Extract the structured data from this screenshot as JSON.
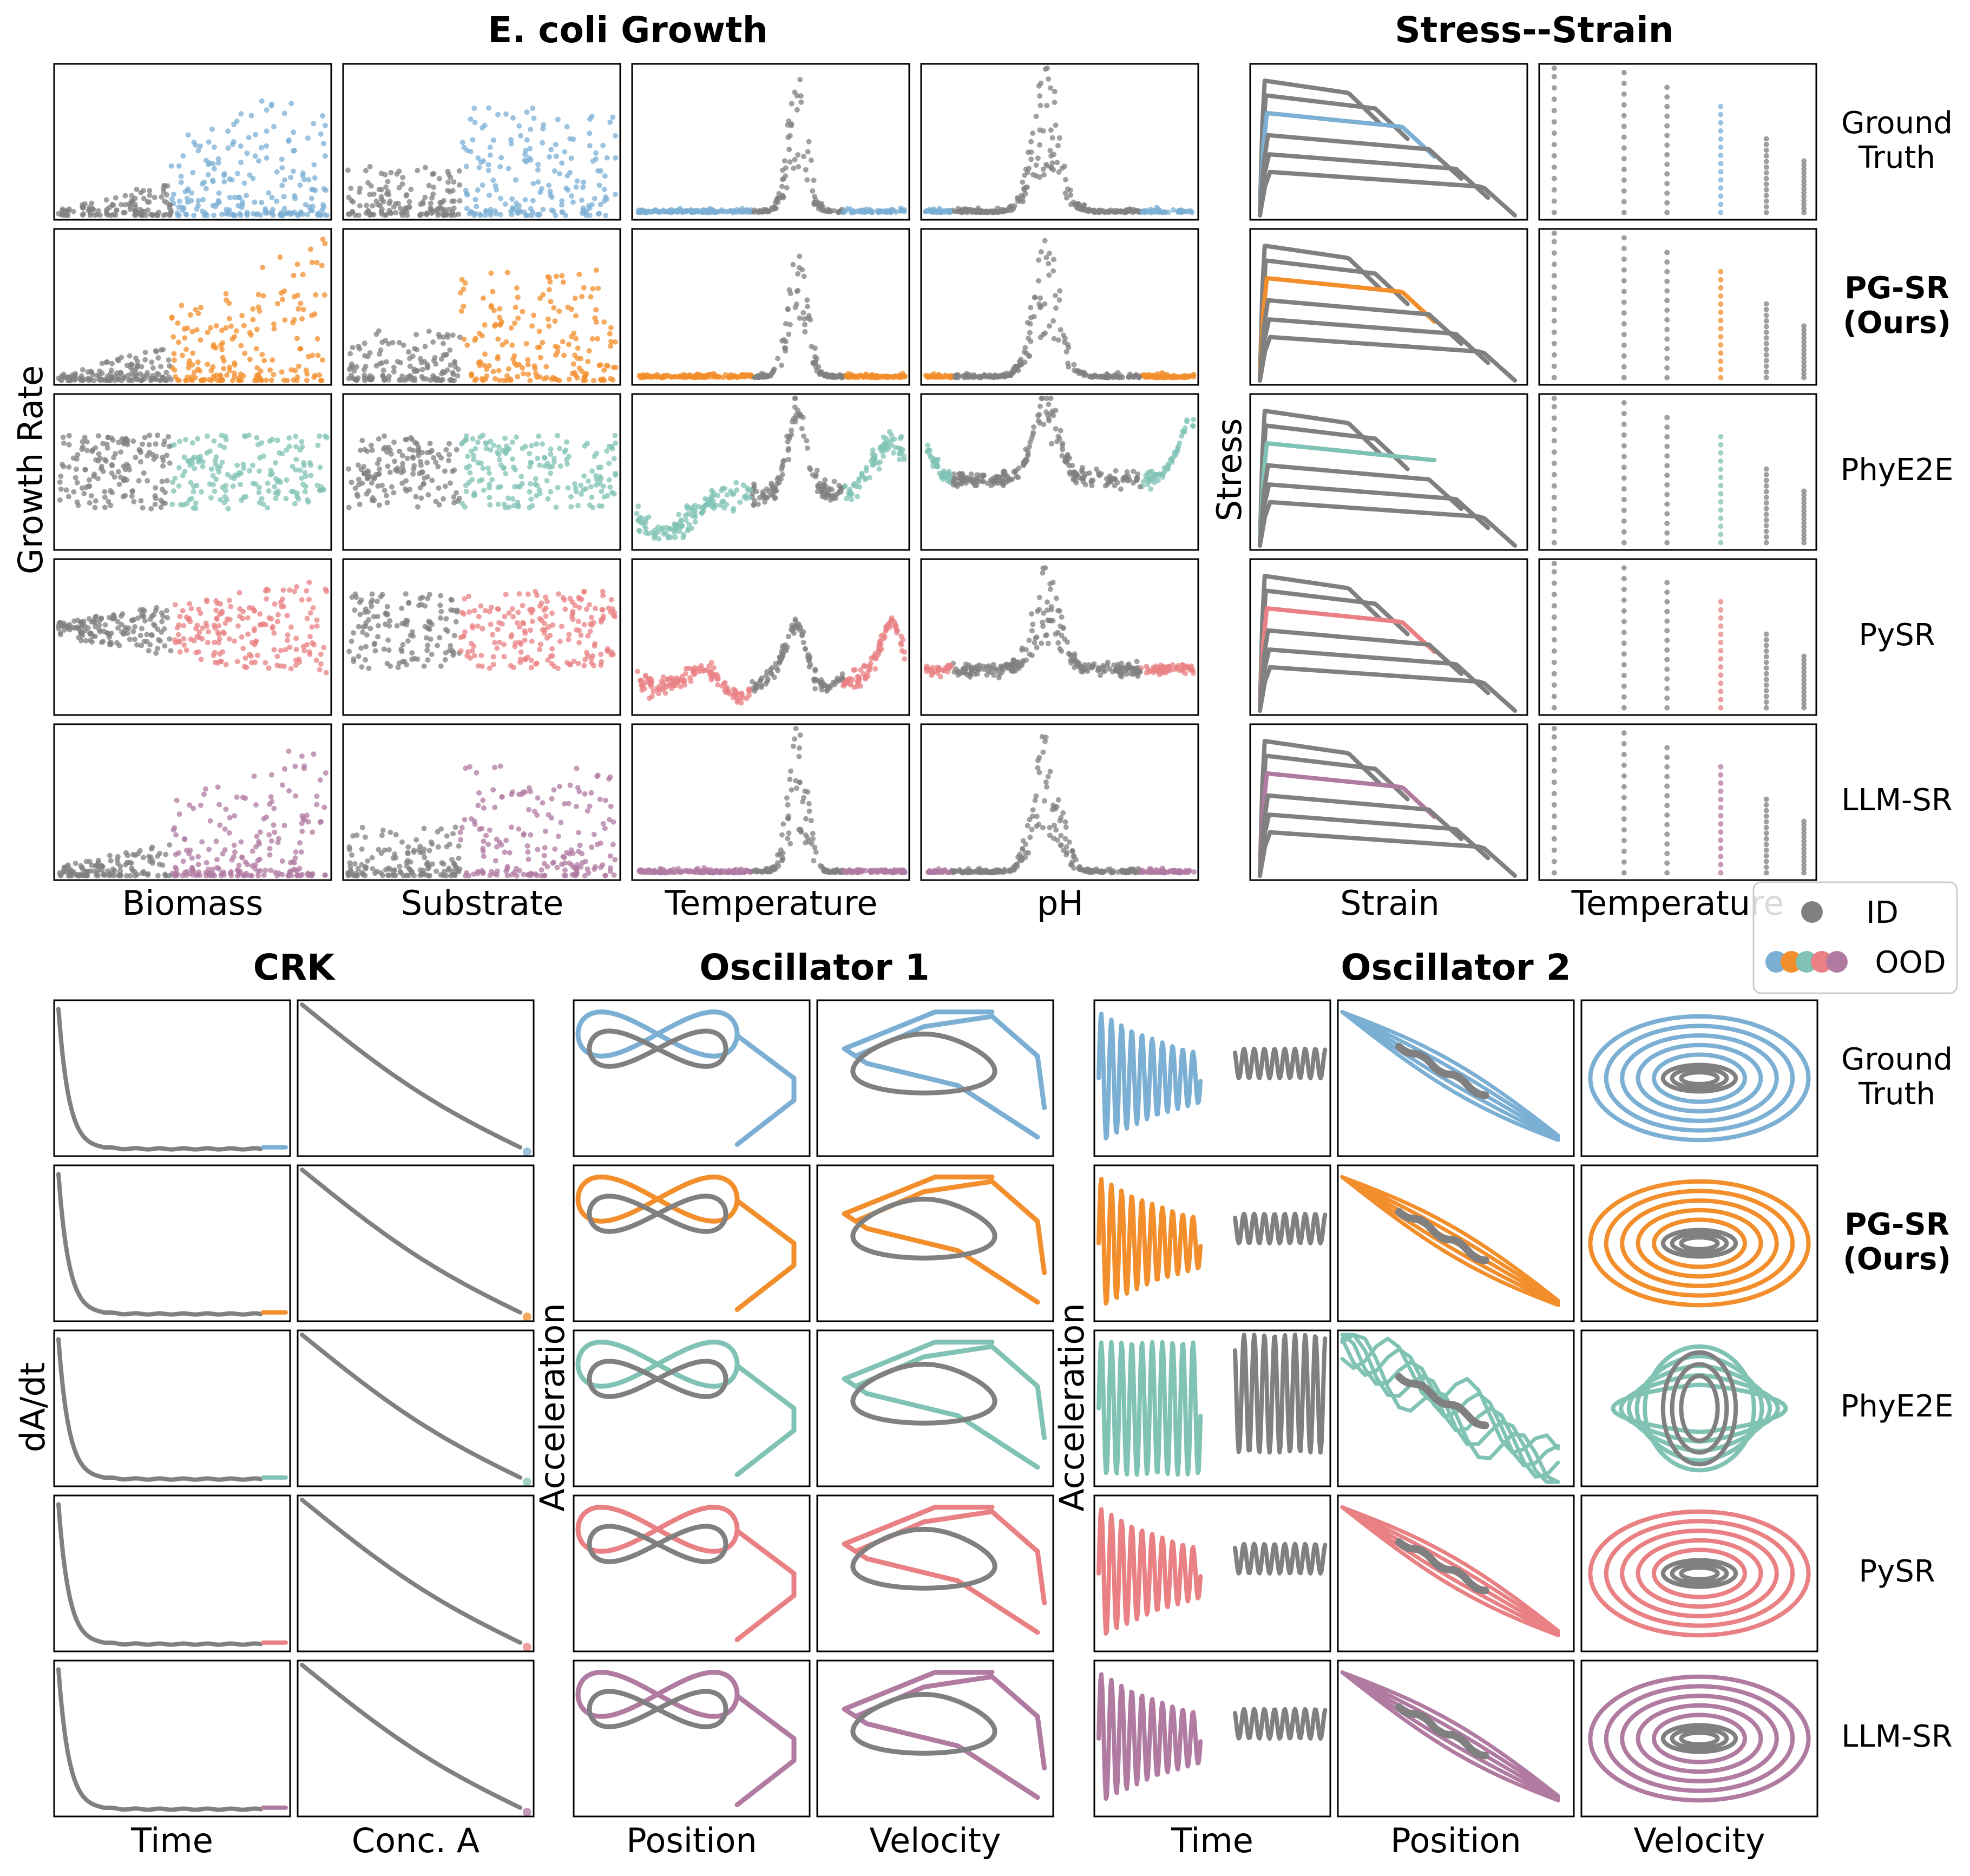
{
  "colors": {
    "id": "#808080",
    "ood": [
      "#7bafd4",
      "#f28e2b",
      "#80c3b5",
      "#e98083",
      "#b07aa1"
    ]
  },
  "row_labels": [
    {
      "lines": [
        "Ground",
        "Truth"
      ],
      "bold": false
    },
    {
      "lines": [
        "PG-SR",
        "(Ours)"
      ],
      "bold": true
    },
    {
      "lines": [
        "PhyE2E"
      ],
      "bold": false
    },
    {
      "lines": [
        "PySR"
      ],
      "bold": false
    },
    {
      "lines": [
        "LLM-SR"
      ],
      "bold": false
    }
  ],
  "legend": {
    "id_label": "ID",
    "ood_label": "OOD"
  },
  "chart_data": [
    {
      "type": "scatter",
      "title": "E. coli Growth",
      "ylabel": "Growth Rate",
      "xlabels": [
        "Biomass",
        "Substrate",
        "Temperature",
        "pH"
      ],
      "methods": [
        "Ground Truth",
        "PG-SR (Ours)",
        "PhyE2E",
        "PySR",
        "LLM-SR"
      ],
      "axes_ticks": "hidden",
      "series": [
        {
          "name": "ID",
          "color": "#808080"
        },
        {
          "name": "OOD",
          "color": "per-method"
        }
      ]
    },
    {
      "type": "scatter",
      "title": "Stress--Strain",
      "ylabel": "Stress",
      "xlabels": [
        "Strain",
        "Temperature"
      ],
      "methods": [
        "Ground Truth",
        "PG-SR (Ours)",
        "PhyE2E",
        "PySR",
        "LLM-SR"
      ],
      "axes_ticks": "hidden",
      "series": [
        {
          "name": "ID",
          "color": "#808080"
        },
        {
          "name": "OOD",
          "color": "per-method"
        }
      ]
    },
    {
      "type": "line",
      "title": "CRK",
      "ylabel": "dA/dt",
      "xlabels": [
        "Time",
        "Conc. A"
      ],
      "methods": [
        "Ground Truth",
        "PG-SR (Ours)",
        "PhyE2E",
        "PySR",
        "LLM-SR"
      ],
      "axes_ticks": "hidden",
      "series": [
        {
          "name": "ID",
          "color": "#808080"
        },
        {
          "name": "OOD",
          "color": "per-method"
        }
      ]
    },
    {
      "type": "line",
      "title": "Oscillator 1",
      "ylabel": "Acceleration",
      "xlabels": [
        "Position",
        "Velocity"
      ],
      "methods": [
        "Ground Truth",
        "PG-SR (Ours)",
        "PhyE2E",
        "PySR",
        "LLM-SR"
      ],
      "axes_ticks": "hidden",
      "series": [
        {
          "name": "ID",
          "color": "#808080"
        },
        {
          "name": "OOD",
          "color": "per-method"
        }
      ]
    },
    {
      "type": "line",
      "title": "Oscillator 2",
      "ylabel": "Acceleration",
      "xlabels": [
        "Time",
        "Position",
        "Velocity"
      ],
      "methods": [
        "Ground Truth",
        "PG-SR (Ours)",
        "PhyE2E",
        "PySR",
        "LLM-SR"
      ],
      "axes_ticks": "hidden",
      "series": [
        {
          "name": "ID",
          "color": "#808080"
        },
        {
          "name": "OOD",
          "color": "per-method"
        }
      ]
    }
  ]
}
